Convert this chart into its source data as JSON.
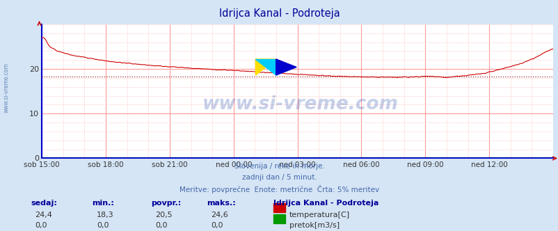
{
  "title": "Idrijca Kanal - Podroteja",
  "title_color": "#000099",
  "title_fontsize": 10.5,
  "bg_color": "#d5e5f5",
  "plot_bg_color": "#ffffff",
  "grid_color_major": "#ff9999",
  "grid_color_minor": "#ffdddd",
  "x_labels": [
    "sob 15:00",
    "sob 18:00",
    "sob 21:00",
    "ned 00:00",
    "ned 03:00",
    "ned 06:00",
    "ned 09:00",
    "ned 12:00"
  ],
  "x_ticks_norm": [
    0.0,
    0.125,
    0.25,
    0.375,
    0.5,
    0.625,
    0.75,
    0.875
  ],
  "ylim": [
    0,
    30
  ],
  "yticks": [
    0,
    10,
    20
  ],
  "avg_line": 18.3,
  "temp_color": "#cc0000",
  "flow_color": "#009900",
  "subtitle1": "Slovenija / reke in morje.",
  "subtitle2": "zadnji dan / 5 minut.",
  "subtitle3": "Meritve: povprečne  Enote: metrične  Črta: 5% meritev",
  "subtitle_color": "#4466aa",
  "watermark": "www.si-vreme.com",
  "watermark_color": "#2244aa",
  "watermark_alpha": 0.25,
  "left_label": "www.si-vreme.com",
  "stats_labels_color": "#000099",
  "stats_values_color": "#333333",
  "stats_headers": [
    "sedaj:",
    "min.:",
    "povpr.:",
    "maks.:"
  ],
  "stats_temp": [
    "24,4",
    "18,3",
    "20,5",
    "24,6"
  ],
  "stats_flow": [
    "0,0",
    "0,0",
    "0,0",
    "0,0"
  ],
  "legend_title": "Idrijca Kanal - Podroteja",
  "legend_temp": "temperatura[C]",
  "legend_flow": "pretok[m3/s]",
  "axis_color": "#0000cc",
  "arrow_color": "#cc0000"
}
